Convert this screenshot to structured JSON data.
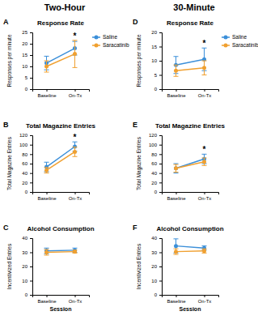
{
  "chart_data": [
    {
      "type": "line",
      "subtitle": "Two-Hour",
      "panel": "A",
      "title": "Response Rate",
      "y_label": "Responses per minute",
      "categories": [
        "Baseline",
        "On-Tx"
      ],
      "ylim": [
        0,
        25
      ],
      "yticks": [
        0,
        5,
        10,
        15,
        20,
        25
      ],
      "legend": "right",
      "annotations": [
        {
          "text": "*",
          "x": "On-Tx"
        }
      ],
      "series": [
        {
          "name": "Saline",
          "color": "#3b8fd9",
          "marker": "circle",
          "values": [
            11.5,
            18
          ],
          "errors": [
            3,
            3
          ]
        },
        {
          "name": "Saracatinib",
          "color": "#f0a030",
          "marker": "circle",
          "values": [
            10,
            15.5
          ],
          "errors": [
            2.5,
            6
          ]
        }
      ]
    },
    {
      "type": "line",
      "panel": "B",
      "title": "Total Magazine Entries",
      "y_label": "Total Magazine Entries",
      "categories": [
        "Baseline",
        "On-Tx"
      ],
      "ylim": [
        0,
        120
      ],
      "yticks": [
        0,
        20,
        40,
        60,
        80,
        100,
        120
      ],
      "annotations": [
        {
          "text": "*",
          "x": "On-Tx"
        }
      ],
      "series": [
        {
          "name": "Saline",
          "color": "#3b8fd9",
          "marker": "circle",
          "values": [
            53,
            96
          ],
          "errors": [
            10,
            10
          ]
        },
        {
          "name": "Saracatinib",
          "color": "#f0a030",
          "marker": "circle",
          "values": [
            46,
            85
          ],
          "errors": [
            6,
            10
          ]
        }
      ]
    },
    {
      "type": "line",
      "panel": "C",
      "title": "Alcohol Consumption",
      "y_label": "Incentivized Entries",
      "x_label": "Session",
      "categories": [
        "Baseline",
        "On-Tx"
      ],
      "ylim": [
        0,
        40
      ],
      "yticks": [
        0,
        10,
        20,
        30,
        40
      ],
      "series": [
        {
          "name": "Saline",
          "color": "#3b8fd9",
          "marker": "circle",
          "values": [
            31,
            31.5
          ],
          "errors": [
            2,
            1.5
          ]
        },
        {
          "name": "Saracatinib",
          "color": "#f0a030",
          "marker": "circle",
          "values": [
            30,
            30.5
          ],
          "errors": [
            2,
            1
          ]
        }
      ]
    },
    {
      "type": "line",
      "subtitle": "30-Minute",
      "panel": "D",
      "title": "Response Rate",
      "y_label": "Responses per minute",
      "categories": [
        "Baseline",
        "On-Tx"
      ],
      "ylim": [
        0,
        20
      ],
      "yticks": [
        0,
        5,
        10,
        15,
        20
      ],
      "legend": "right",
      "annotations": [
        {
          "text": "*",
          "x": "On-Tx"
        }
      ],
      "series": [
        {
          "name": "Saline",
          "color": "#3b8fd9",
          "marker": "circle",
          "values": [
            8.5,
            10.5
          ],
          "errors": [
            3,
            4
          ]
        },
        {
          "name": "Saracatinib",
          "color": "#f0a030",
          "marker": "circle",
          "values": [
            6.5,
            7.5
          ],
          "errors": [
            2,
            2.5
          ]
        }
      ]
    },
    {
      "type": "line",
      "panel": "E",
      "title": "Total Magazine Entries",
      "y_label": "Total Magazine Entries",
      "categories": [
        "Baseline",
        "On-Tx"
      ],
      "ylim": [
        0,
        120
      ],
      "yticks": [
        0,
        20,
        40,
        60,
        80,
        100,
        120
      ],
      "annotations": [
        {
          "text": "*",
          "x": "On-Tx"
        }
      ],
      "series": [
        {
          "name": "Saline",
          "color": "#3b8fd9",
          "marker": "circle",
          "values": [
            50,
            70
          ],
          "errors": [
            10,
            10
          ]
        },
        {
          "name": "Saracatinib",
          "color": "#f0a030",
          "marker": "circle",
          "values": [
            50,
            64
          ],
          "errors": [
            8,
            8
          ]
        }
      ]
    },
    {
      "type": "line",
      "panel": "F",
      "title": "Alcohol Consumption",
      "y_label": "Incentivized Entries",
      "x_label": "Session",
      "categories": [
        "Baseline",
        "On-Tx"
      ],
      "ylim": [
        0,
        40
      ],
      "yticks": [
        0,
        10,
        20,
        30,
        40
      ],
      "series": [
        {
          "name": "Saline",
          "color": "#3b8fd9",
          "marker": "circle",
          "values": [
            34.5,
            33
          ],
          "errors": [
            5,
            1.5
          ]
        },
        {
          "name": "Saracatinib",
          "color": "#f0a030",
          "marker": "circle",
          "values": [
            30.5,
            31
          ],
          "errors": [
            2,
            1.5
          ]
        }
      ]
    }
  ]
}
